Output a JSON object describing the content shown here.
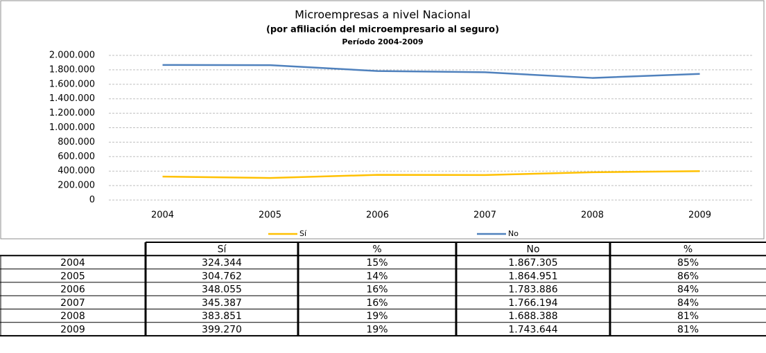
{
  "chart_data": {
    "type": "line",
    "title": "Microempresas a nivel Nacional",
    "subtitle": [
      "(por afiliación del microempresario al seguro)",
      "Período 2004-2009"
    ],
    "categories": [
      "2004",
      "2005",
      "2006",
      "2007",
      "2008",
      "2009"
    ],
    "series": [
      {
        "name": "Sí",
        "color": "#ffc000",
        "values": [
          324344,
          304762,
          348055,
          345387,
          383851,
          399270
        ]
      },
      {
        "name": "No",
        "color": "#4f81bd",
        "values": [
          1867305,
          1864951,
          1783886,
          1766194,
          1688388,
          1743644
        ]
      }
    ],
    "ylim": [
      0,
      2000000
    ],
    "yticks": [
      0,
      {
        "value": 200000,
        "label": "200.000"
      },
      {
        "value": 400000,
        "label": "400.000"
      },
      {
        "value": 600000,
        "label": "600.000"
      },
      {
        "value": 800000,
        "label": "800.000"
      },
      {
        "value": 1000000,
        "label": "1.000.000"
      },
      {
        "value": 1200000,
        "label": "1.200.000"
      },
      {
        "value": 1400000,
        "label": "1.400.000"
      },
      {
        "value": 1600000,
        "label": "1.600.000"
      },
      {
        "value": 1800000,
        "label": "1.800.000"
      },
      {
        "value": 2000000,
        "label": "2.000.000"
      }
    ],
    "grid": true,
    "legend": "bottom"
  },
  "table": {
    "columns": [
      "Sí",
      "%",
      "No",
      "%"
    ],
    "rows": [
      [
        "2004",
        "324.344",
        "15%",
        "1.867.305",
        "85%"
      ],
      [
        "2005",
        "304.762",
        "14%",
        "1.864.951",
        "86%"
      ],
      [
        "2006",
        "348.055",
        "16%",
        "1.783.886",
        "84%"
      ],
      [
        "2007",
        "345.387",
        "16%",
        "1.766.194",
        "84%"
      ],
      [
        "2008",
        "383.851",
        "19%",
        "1.688.388",
        "81%"
      ],
      [
        "2009",
        "399.270",
        "19%",
        "1.743.644",
        "81%"
      ]
    ]
  }
}
